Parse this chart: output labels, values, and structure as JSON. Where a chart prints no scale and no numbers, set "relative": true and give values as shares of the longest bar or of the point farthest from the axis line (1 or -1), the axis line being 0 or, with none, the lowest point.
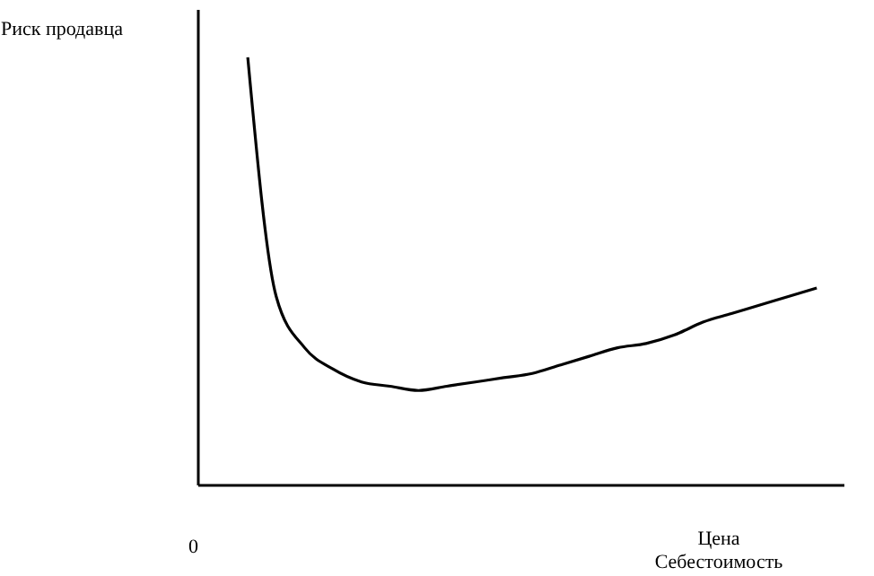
{
  "chart_data": {
    "type": "line",
    "relative": true,
    "ylabel": "Риск продавца",
    "xlabel": "Цена\nСебестоимость",
    "tick_labels": false,
    "annotations": [
      "0"
    ],
    "categories": [
      null,
      null,
      null,
      null,
      null,
      null,
      null,
      null,
      null,
      null,
      null,
      null,
      null,
      null,
      null,
      null,
      null,
      null,
      null,
      null,
      null
    ],
    "series": [
      {
        "color": "#000000",
        "values": [
          1,
          0.44,
          0.32,
          0.27,
          0.24,
          0.23,
          0.22,
          0.23,
          0.24,
          0.25,
          0.26,
          0.28,
          0.3,
          0.32,
          0.33,
          0.35,
          0.38,
          0.4,
          0.42,
          0.44,
          0.46
        ]
      }
    ],
    "marker": "none",
    "line_style": "solid"
  }
}
